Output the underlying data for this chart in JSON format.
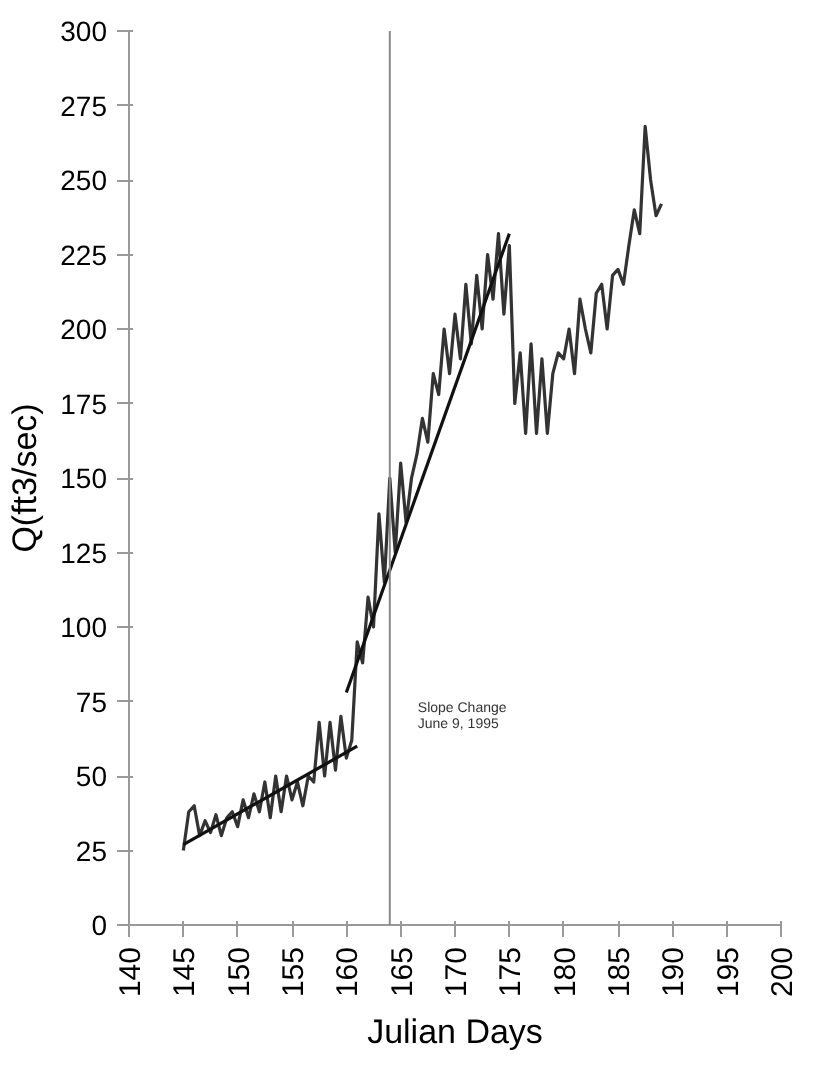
{
  "chart_data": {
    "type": "line",
    "xlabel": "Julian Days",
    "ylabel": "Q(ft3/sec)",
    "xlim": [
      140,
      200
    ],
    "xticks": [
      140,
      145,
      150,
      155,
      160,
      165,
      170,
      175,
      180,
      185,
      190,
      195,
      200
    ],
    "ylim": [
      0,
      300
    ],
    "yticks": [
      0,
      25,
      50,
      75,
      100,
      125,
      150,
      175,
      200,
      225,
      250,
      275,
      300
    ],
    "grid": false,
    "marker": "none",
    "line_style": "solid",
    "ref_lines": [
      {
        "axis": "x",
        "value": 164,
        "label": "Slope Change\nJune 9, 1995",
        "color": "#888888"
      }
    ],
    "series": [
      {
        "color": "#333333",
        "x": [
          145,
          145.5,
          146,
          146.5,
          147,
          147.5,
          148,
          148.5,
          149,
          149.5,
          150,
          150.5,
          151,
          151.5,
          152,
          152.5,
          153,
          153.5,
          154,
          154.5,
          155,
          155.5,
          156,
          156.5,
          157,
          157.5,
          158,
          158.5,
          159,
          159.5,
          160,
          160.5,
          161,
          161.5,
          162,
          162.5,
          163,
          163.5,
          164,
          164.5,
          165,
          165.5,
          166,
          166.5,
          167,
          167.5,
          168,
          168.5,
          169,
          169.5,
          170,
          170.5,
          171,
          171.5,
          172,
          172.5,
          173,
          173.5,
          174,
          174.5,
          175,
          175.5,
          176,
          176.5,
          177,
          177.5,
          178,
          178.5,
          179,
          179.5,
          180,
          180.5,
          181,
          181.5,
          182,
          182.5,
          183,
          183.5,
          184,
          184.5,
          185,
          185.5,
          186,
          186.5,
          187,
          187.5,
          188,
          188.5,
          189
        ],
        "values": [
          25,
          38,
          40,
          30,
          35,
          31,
          37,
          30,
          36,
          38,
          33,
          42,
          36,
          44,
          38,
          48,
          36,
          50,
          38,
          50,
          42,
          48,
          40,
          50,
          48,
          68,
          50,
          68,
          52,
          70,
          56,
          62,
          95,
          88,
          110,
          100,
          138,
          115,
          150,
          125,
          155,
          135,
          150,
          158,
          170,
          162,
          185,
          178,
          200,
          185,
          205,
          190,
          215,
          195,
          218,
          200,
          225,
          210,
          232,
          205,
          228,
          175,
          192,
          165,
          195,
          165,
          190,
          165,
          185,
          192,
          190,
          200,
          185,
          210,
          200,
          192,
          212,
          215,
          200,
          218,
          220,
          215,
          228,
          240,
          232,
          268,
          250,
          238,
          242
        ]
      },
      {
        "type": "line",
        "color": "#111111",
        "x": [
          145,
          161
        ],
        "values": [
          27,
          60
        ]
      },
      {
        "type": "line",
        "color": "#111111",
        "x": [
          160,
          175
        ],
        "values": [
          78,
          232
        ]
      }
    ]
  }
}
